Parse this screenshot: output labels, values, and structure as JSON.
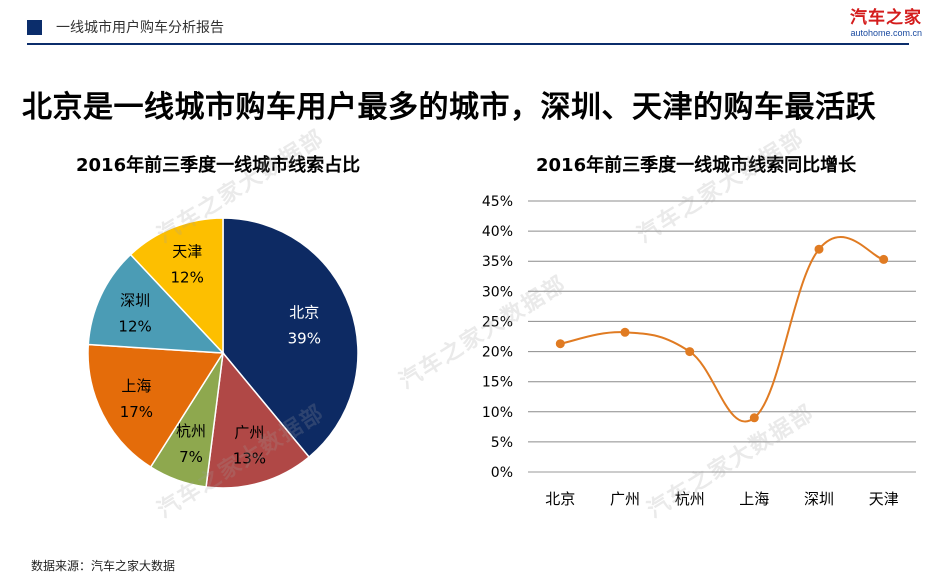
{
  "header": {
    "title": "一线城市用户购车分析报告",
    "accent_color": "#0b2d6b"
  },
  "logo": {
    "main": "汽车之家",
    "sub": "autohome.com.cn"
  },
  "headline": "北京是一线城市购车用户最多的城市，深圳、天津的购车最活跃",
  "watermark": "汽车之家大数据部",
  "source": "数据来源：汽车之家大数据",
  "chart_data": [
    {
      "type": "pie",
      "title": "2016年前三季度一线城市线索占比",
      "categories": [
        "北京",
        "广州",
        "杭州",
        "上海",
        "深圳",
        "天津"
      ],
      "values": [
        39,
        13,
        7,
        17,
        12,
        12
      ],
      "labels": [
        "39%",
        "13%",
        "7%",
        "17%",
        "12%",
        "12%"
      ],
      "colors": [
        "#0d2a63",
        "#b04846",
        "#8ea84e",
        "#e46c0a",
        "#4b9cb5",
        "#fdbf00"
      ],
      "start_angle": "top, clockwise",
      "legend": "none (labels on slices)"
    },
    {
      "type": "line",
      "title": "2016年前三季度一线城市线索同比增长",
      "categories": [
        "北京",
        "广州",
        "杭州",
        "上海",
        "深圳",
        "天津"
      ],
      "series": [
        {
          "values": [
            21.3,
            23.2,
            20.0,
            9.0,
            37.0,
            35.3
          ],
          "color": "#e07b22"
        }
      ],
      "ylim": [
        0,
        45
      ],
      "yticks": [
        "0%",
        "5%",
        "10%",
        "15%",
        "20%",
        "25%",
        "30%",
        "35%",
        "40%",
        "45%"
      ],
      "smooth": true,
      "grid": true,
      "legend": "none"
    }
  ]
}
